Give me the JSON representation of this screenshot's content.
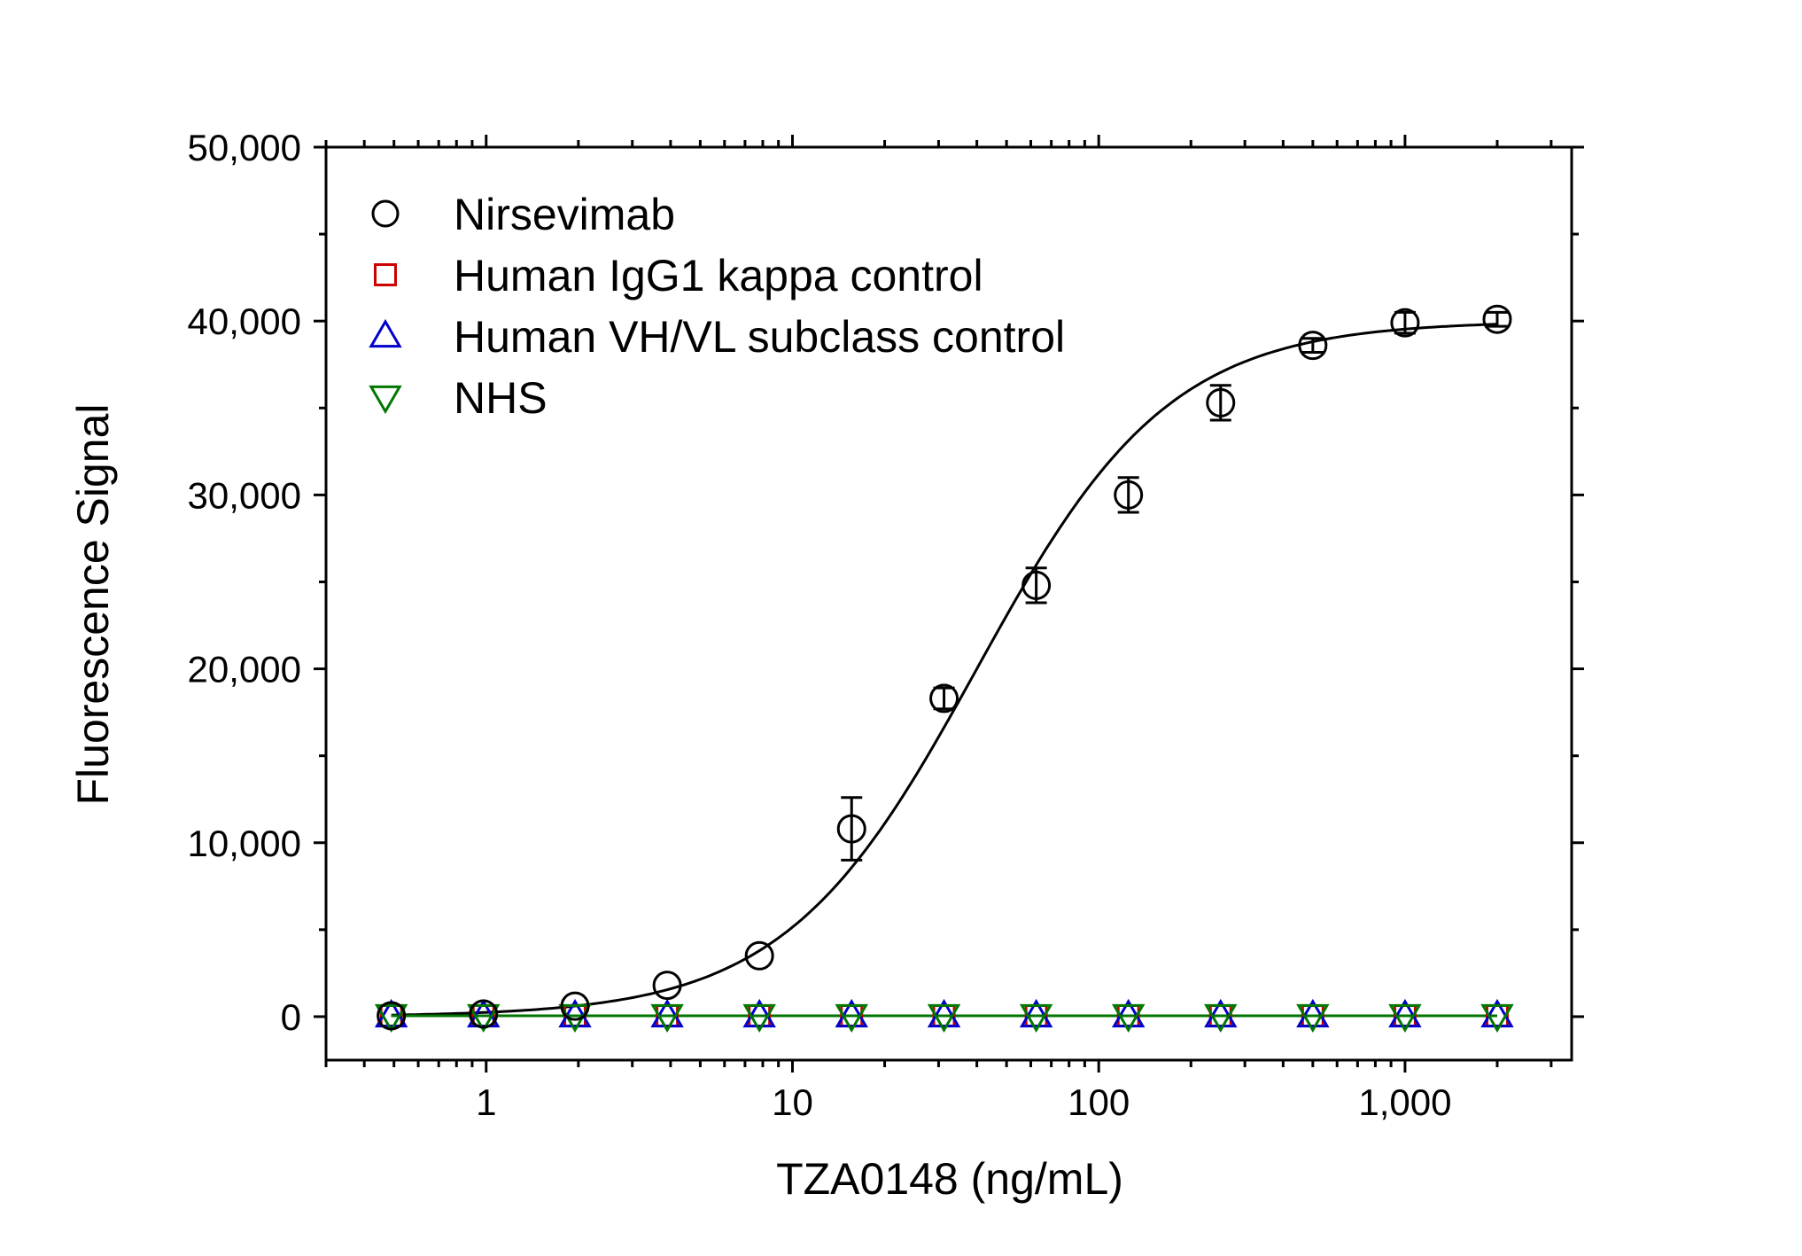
{
  "chart_data": {
    "type": "scatter",
    "title": "",
    "xlabel": "TZA0148 (ng/mL)",
    "ylabel": "Fluorescence Signal",
    "xscale": "log",
    "xlim": [
      0.3,
      3500
    ],
    "ylim": [
      -2500,
      50000
    ],
    "x_ticks": [
      {
        "value": 1,
        "label": "1"
      },
      {
        "value": 10,
        "label": "10"
      },
      {
        "value": 100,
        "label": "100"
      },
      {
        "value": 1000,
        "label": "1,000"
      }
    ],
    "y_ticks": [
      {
        "value": 0,
        "label": "0"
      },
      {
        "value": 10000,
        "label": "10,000"
      },
      {
        "value": 20000,
        "label": "20,000"
      },
      {
        "value": 30000,
        "label": "30,000"
      },
      {
        "value": 40000,
        "label": "40,000"
      },
      {
        "value": 50000,
        "label": "50,000"
      }
    ],
    "grid": false,
    "legend_position": "top-left",
    "x": [
      0.49,
      0.98,
      1.95,
      3.9,
      7.8,
      15.6,
      31.25,
      62.5,
      125,
      250,
      500,
      1000,
      2000
    ],
    "series": [
      {
        "name": "Nirsevimab",
        "marker": "circle",
        "color": "#000000",
        "values": [
          50,
          150,
          600,
          1800,
          3500,
          10800,
          18300,
          24800,
          30000,
          35300,
          38600,
          39900,
          40100
        ],
        "errors": [
          0,
          0,
          0,
          0,
          0,
          1800,
          600,
          1000,
          1000,
          1000,
          400,
          600,
          400
        ],
        "fit": {
          "model": "4PL",
          "bottom": 0,
          "top": 40000,
          "ec50": 40,
          "hill": 1.38
        }
      },
      {
        "name": "Human IgG1 kappa control",
        "marker": "square",
        "color": "#cc0000",
        "values": [
          50,
          50,
          50,
          50,
          50,
          50,
          50,
          50,
          50,
          50,
          50,
          50,
          50
        ]
      },
      {
        "name": "Human VH/VL subclass control",
        "marker": "triangle-up",
        "color": "#0000cc",
        "values": [
          50,
          50,
          50,
          50,
          50,
          50,
          50,
          50,
          50,
          50,
          50,
          50,
          50
        ]
      },
      {
        "name": "NHS",
        "marker": "triangle-down",
        "color": "#007700",
        "values": [
          50,
          50,
          50,
          50,
          50,
          50,
          50,
          50,
          50,
          50,
          50,
          50,
          50
        ]
      }
    ]
  }
}
